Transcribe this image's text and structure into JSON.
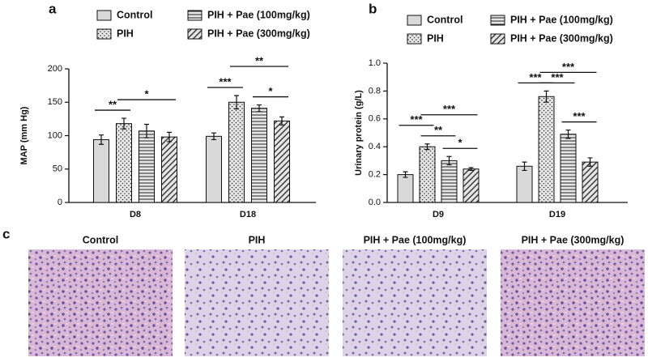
{
  "chart_data": [
    {
      "type": "bar",
      "label": "a",
      "y_label": "MAP (mm Hg)",
      "categories": [
        "D8",
        "D18"
      ],
      "ylim": [
        0,
        200
      ],
      "yticks": [
        0,
        50,
        100,
        150,
        200
      ],
      "series": [
        {
          "name": "Control",
          "color": "#d9d9d9",
          "fill": "solid",
          "values": [
            94,
            99
          ],
          "errors": [
            7,
            5
          ]
        },
        {
          "name": "PIH",
          "color": "#d9d9d9",
          "fill": "dots",
          "values": [
            118,
            150
          ],
          "errors": [
            8,
            10
          ]
        },
        {
          "name": "PIH + Pae (100mg/kg)",
          "color": "#d9d9d9",
          "fill": "horizontal",
          "values": [
            107,
            141
          ],
          "errors": [
            10,
            5
          ]
        },
        {
          "name": "PIH + Pae (300mg/kg)",
          "color": "#d9d9d9",
          "fill": "diagonal",
          "values": [
            98,
            122
          ],
          "errors": [
            7,
            6
          ]
        }
      ],
      "annotations": [
        "**",
        "*",
        "***",
        "**",
        "*"
      ]
    },
    {
      "type": "bar",
      "label": "b",
      "y_label": "Urinary protein (g/L)",
      "categories": [
        "D9",
        "D19"
      ],
      "ylim": [
        0,
        1.0
      ],
      "yticks": [
        {
          "value": 0,
          "label": "0.0"
        },
        0.2,
        0.4,
        0.6,
        0.8,
        {
          "value": 1.0,
          "label": "1.0"
        }
      ],
      "series": [
        {
          "name": "Control",
          "color": "#d9d9d9",
          "fill": "solid",
          "values": [
            0.2,
            0.26
          ],
          "errors": [
            0.02,
            0.03
          ]
        },
        {
          "name": "PIH",
          "color": "#d9d9d9",
          "fill": "dots",
          "values": [
            0.4,
            0.76
          ],
          "errors": [
            0.02,
            0.04
          ]
        },
        {
          "name": "PIH + Pae (100mg/kg)",
          "color": "#d9d9d9",
          "fill": "horizontal",
          "values": [
            0.3,
            0.49
          ],
          "errors": [
            0.03,
            0.03
          ]
        },
        {
          "name": "PIH + Pae (300mg/kg)",
          "color": "#d9d9d9",
          "fill": "diagonal",
          "values": [
            0.24,
            0.29
          ],
          "errors": [
            0.01,
            0.03
          ]
        }
      ],
      "annotations": [
        "***",
        "**",
        "***",
        "*",
        "***",
        "***",
        "***",
        "***"
      ]
    }
  ],
  "histology": {
    "label": "c",
    "titles": [
      "Control",
      "PIH",
      "PIH + Pae (100mg/kg)",
      "PIH + Pae (300mg/kg)"
    ]
  }
}
